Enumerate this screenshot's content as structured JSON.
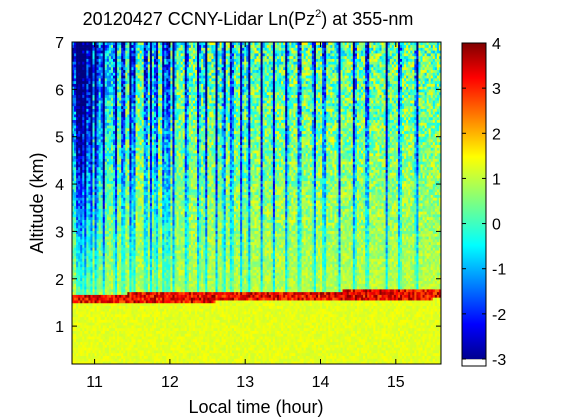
{
  "chart_data": {
    "type": "heatmap",
    "title_main": "20120427 CCNY-Lidar Ln(Pz",
    "title_sup": "2",
    "title_tail": ") at 355-nm",
    "xlabel": "Local time (hour)",
    "ylabel": "Altitude (km)",
    "xlim": [
      10.7,
      15.6
    ],
    "ylim": [
      0.2,
      7
    ],
    "xticks": [
      "11",
      "12",
      "13",
      "14",
      "15"
    ],
    "yticks": [
      "1",
      "2",
      "3",
      "4",
      "5",
      "6",
      "7"
    ],
    "colorbar": {
      "range": [
        -3,
        4
      ],
      "ticks": [
        "-3",
        "-2",
        "-1",
        "0",
        "1",
        "2",
        "3",
        "4"
      ],
      "colormap": "jet"
    },
    "features": {
      "aerosol_layer_top_km": {
        "start": 1.6,
        "end": 1.7
      },
      "near_surface_value": 1.2,
      "upper_background_value": 0.5
    },
    "dark_profile_times": [
      10.78,
      10.83,
      10.88,
      10.95,
      11.02,
      11.12,
      11.28,
      11.38,
      11.48,
      11.52,
      11.68,
      11.75,
      11.82,
      11.92,
      11.98,
      12.05,
      12.22,
      12.38,
      12.48,
      12.62,
      12.72,
      12.82,
      12.95,
      13.05,
      13.22,
      13.38,
      13.55,
      13.72,
      13.92,
      14.05,
      14.25,
      14.45,
      14.62,
      14.88,
      15.05,
      15.28
    ]
  }
}
